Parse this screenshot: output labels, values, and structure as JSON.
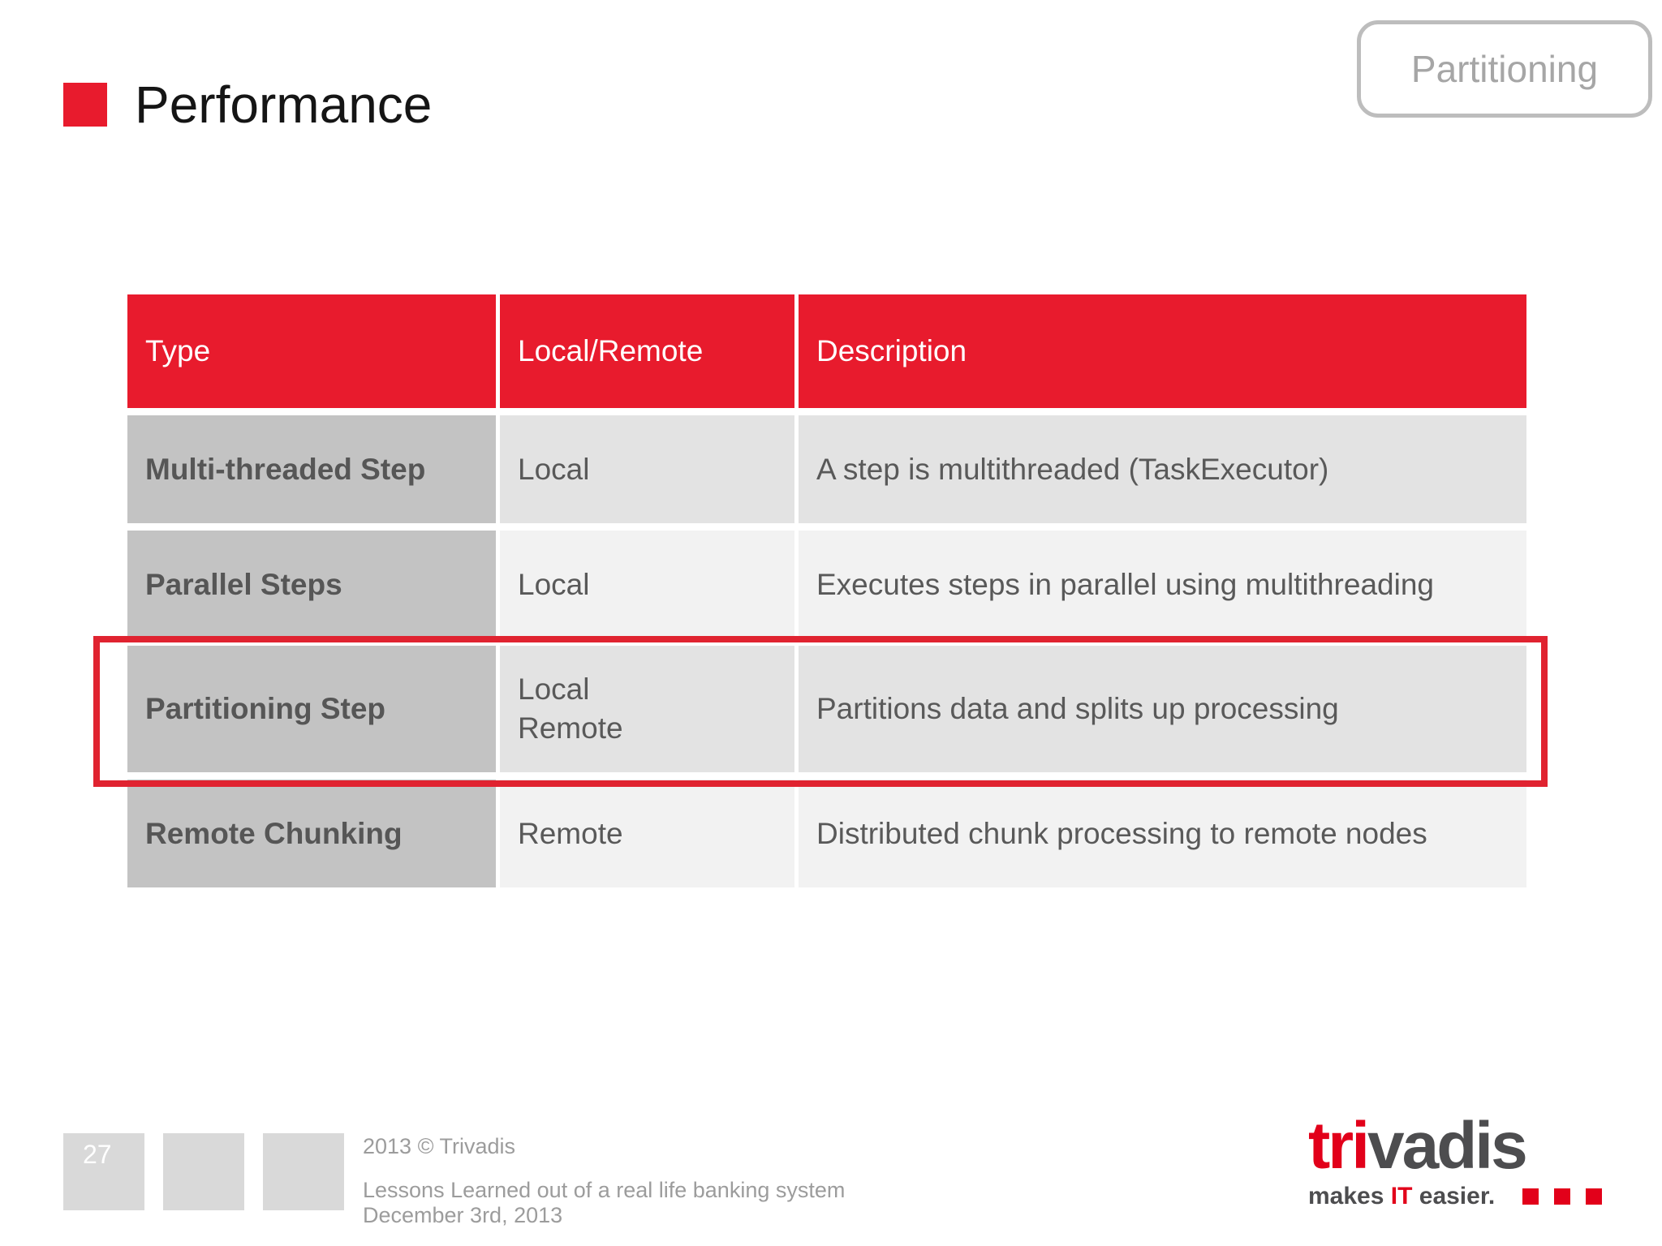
{
  "slide": {
    "title": "Performance",
    "badge_label": "Partitioning",
    "colors": {
      "brand_red": "#e81b2d",
      "highlight_red": "#e02330",
      "logo_red": "#e2001a",
      "logo_gray": "#4d4d4f",
      "type_column_gray": "#c3c3c3",
      "row_shade_light": "#e3e3e3",
      "row_shade_lighter": "#f2f2f2"
    }
  },
  "table": {
    "headers": [
      "Type",
      "Local/Remote",
      "Description"
    ],
    "rows": [
      {
        "type": "Multi-threaded Step",
        "local_remote": "Local",
        "description": "A step is multithreaded (TaskExecutor)"
      },
      {
        "type": "Parallel Steps",
        "local_remote": "Local",
        "description": "Executes steps in parallel using multithreading"
      },
      {
        "type": "Partitioning Step",
        "local_remote": "Local\nRemote",
        "description": "Partitions data and splits up processing",
        "highlighted": true
      },
      {
        "type": "Remote Chunking",
        "local_remote": "Remote",
        "description": "Distributed chunk processing to remote nodes"
      }
    ]
  },
  "footer": {
    "page_number": "27",
    "copyright": "2013 © Trivadis",
    "subtitle_line1": "Lessons Learned out of a real life banking system",
    "subtitle_line2": "December 3rd, 2013"
  },
  "logo": {
    "word_red": "tri",
    "word_gray": "vadis",
    "tagline_pre": "makes ",
    "tagline_accent": "IT",
    "tagline_post": " easier."
  }
}
